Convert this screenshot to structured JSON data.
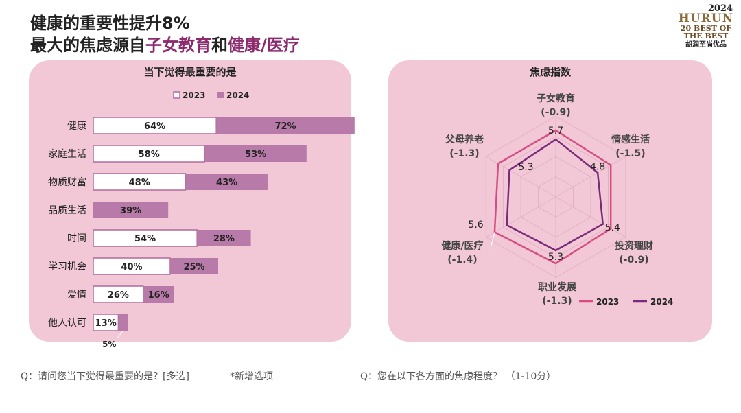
{
  "headline": {
    "line1": "健康的重要性提升8%",
    "line2_prefix": "最大的焦虑源自",
    "line2_accent1": "子女教育",
    "line2_mid": "和",
    "line2_accent2": "健康/医疗"
  },
  "logo": {
    "year": "2024",
    "brand": "HURUN",
    "mark": "20 BEST OF THE BEST",
    "subtitle": "胡润至尚优品"
  },
  "footer": {
    "left_question": "Q：请问您当下觉得最重要的是？[多选]",
    "note": "*新增选项",
    "right_question": "Q：您在以下各方面的焦虑程度？ （1-10分）"
  },
  "colors": {
    "panel": "#f2c8d6",
    "bar2023_fill": "#ffffff",
    "bar2023_border": "#b06a9a",
    "bar2024_fill": "#b87aa8",
    "radar2023": "#d84c82",
    "radar2024": "#7a2a7a",
    "accent_text": "#8c2a6e"
  },
  "chart_data": [
    {
      "type": "bar",
      "orientation": "horizontal",
      "stacked": true,
      "title": "当下觉得最重要的是",
      "legend": "top",
      "categories": [
        "健康",
        "家庭生活",
        "物质财富",
        "品质生活",
        "时间",
        "学习机会",
        "爱情",
        "他人认可"
      ],
      "series": [
        {
          "name": "2023",
          "values": [
            64,
            58,
            48,
            null,
            54,
            40,
            26,
            13
          ],
          "labels": [
            "64%",
            "58%",
            "48%",
            "",
            "54%",
            "40%",
            "26%",
            "13%"
          ]
        },
        {
          "name": "2024",
          "values": [
            72,
            53,
            43,
            39,
            28,
            25,
            16,
            5
          ],
          "labels": [
            "72%",
            "53%",
            "43%",
            "39%",
            "28%",
            "25%",
            "16%",
            "5%"
          ]
        }
      ]
    },
    {
      "type": "radar",
      "title": "焦虑指数",
      "legend": "bottom-right",
      "axes": [
        {
          "name": "子女教育",
          "change": "(-0.9)"
        },
        {
          "name": "情感生活",
          "change": "(-1.5)"
        },
        {
          "name": "投资理财",
          "change": "(-0.9)"
        },
        {
          "name": "职业发展",
          "change": "(-1.3)"
        },
        {
          "name": "健康/医疗",
          "change": "(-1.4)"
        },
        {
          "name": "父母养老",
          "change": "(-1.3)"
        }
      ],
      "series": [
        {
          "name": "2023",
          "values": [
            6.6,
            6.3,
            6.3,
            6.6,
            7.0,
            6.6
          ]
        },
        {
          "name": "2024",
          "values": [
            5.7,
            4.8,
            5.4,
            5.3,
            5.6,
            5.3
          ]
        }
      ],
      "value_labels": [
        "5.7",
        "4.8",
        "5.4",
        "5.3",
        "5.6",
        "5.3"
      ],
      "scale": [
        0,
        10
      ]
    }
  ]
}
